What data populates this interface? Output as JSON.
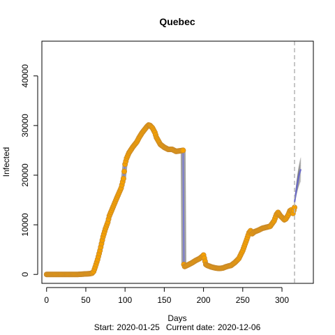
{
  "chart_data": {
    "type": "scatter",
    "title": "Quebec",
    "xlabel": "Days",
    "ylabel": "Infected",
    "footer": {
      "start_label": "Start:",
      "start_date": "2020-01-25",
      "current_label": "Current date:",
      "current_date": "2020-12-06"
    },
    "xlim": [
      -6,
      340
    ],
    "ylim": [
      -1800,
      47000
    ],
    "xticks": [
      0,
      50,
      100,
      150,
      200,
      250,
      300
    ],
    "yticks": [
      0,
      10000,
      20000,
      30000,
      40000
    ],
    "current_day": 316,
    "colors": {
      "points_fill": "#f5a000",
      "points_edge": "#c98a2a",
      "fit_line": "#7b7bd1",
      "fit_band": "#555555",
      "projection": "#6a6ac8",
      "current_line": "#b5b5b5"
    },
    "series": [
      {
        "name": "observed",
        "x": [
          0,
          10,
          20,
          30,
          40,
          50,
          55,
          58,
          60,
          62,
          65,
          68,
          70,
          72,
          75,
          78,
          80,
          85,
          90,
          95,
          98,
          100,
          102,
          105,
          110,
          115,
          118,
          120,
          122,
          125,
          128,
          130,
          132,
          135,
          138,
          140,
          145,
          150,
          155,
          160,
          165,
          170,
          174,
          175,
          176,
          180,
          185,
          190,
          195,
          199,
          200,
          203,
          205,
          210,
          215,
          220,
          225,
          228,
          230,
          232,
          235,
          240,
          245,
          250,
          255,
          258,
          260,
          262,
          265,
          270,
          275,
          280,
          285,
          290,
          293,
          295,
          298,
          300,
          303,
          305,
          308,
          310,
          312,
          314,
          316
        ],
        "y": [
          0,
          0,
          0,
          0,
          0,
          100,
          150,
          250,
          600,
          1500,
          3000,
          4800,
          6200,
          7600,
          9200,
          10500,
          11800,
          13700,
          15600,
          17400,
          19300,
          22200,
          23400,
          24500,
          25700,
          26700,
          27600,
          28100,
          28600,
          29200,
          29800,
          30100,
          30000,
          29500,
          28600,
          27600,
          26200,
          25600,
          25200,
          25200,
          24800,
          24900,
          25000,
          2000,
          1600,
          1900,
          2300,
          2800,
          3200,
          3700,
          3900,
          2000,
          1800,
          1500,
          1300,
          1200,
          1300,
          1500,
          1600,
          1700,
          1800,
          2400,
          3200,
          4800,
          7000,
          8400,
          8800,
          8200,
          8600,
          8900,
          9300,
          9500,
          9700,
          10800,
          12100,
          12500,
          11800,
          11500,
          11000,
          11200,
          12000,
          12800,
          13000,
          12300,
          13500
        ]
      },
      {
        "name": "projection",
        "x": [
          316,
          317,
          318,
          319,
          320,
          321,
          322,
          323,
          324
        ],
        "y": [
          14500,
          15600,
          16700,
          17700,
          18600,
          19400,
          20100,
          20700,
          21200
        ]
      }
    ]
  }
}
